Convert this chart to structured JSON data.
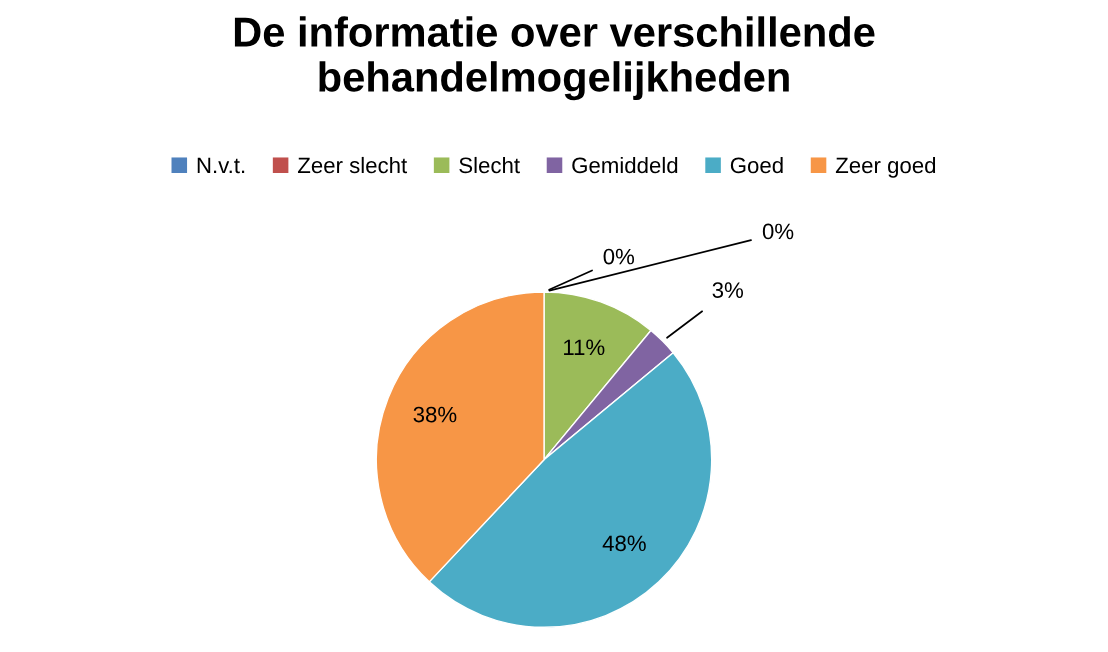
{
  "chart_data": {
    "type": "pie",
    "title": "De informatie over verschillende\nbehandelmogelijkheden",
    "categories": [
      "N.v.t.",
      "Zeer slecht",
      "Slecht",
      "Gemiddeld",
      "Goed",
      "Zeer goed"
    ],
    "values": [
      0,
      0,
      11,
      3,
      48,
      38
    ],
    "colors": [
      "#4f81bd",
      "#c0504d",
      "#9bbb59",
      "#8064a2",
      "#4bacc6",
      "#f79646"
    ],
    "value_labels": [
      "0%",
      "0%",
      "11%",
      "3%",
      "48%",
      "38%"
    ],
    "legend": "top"
  }
}
